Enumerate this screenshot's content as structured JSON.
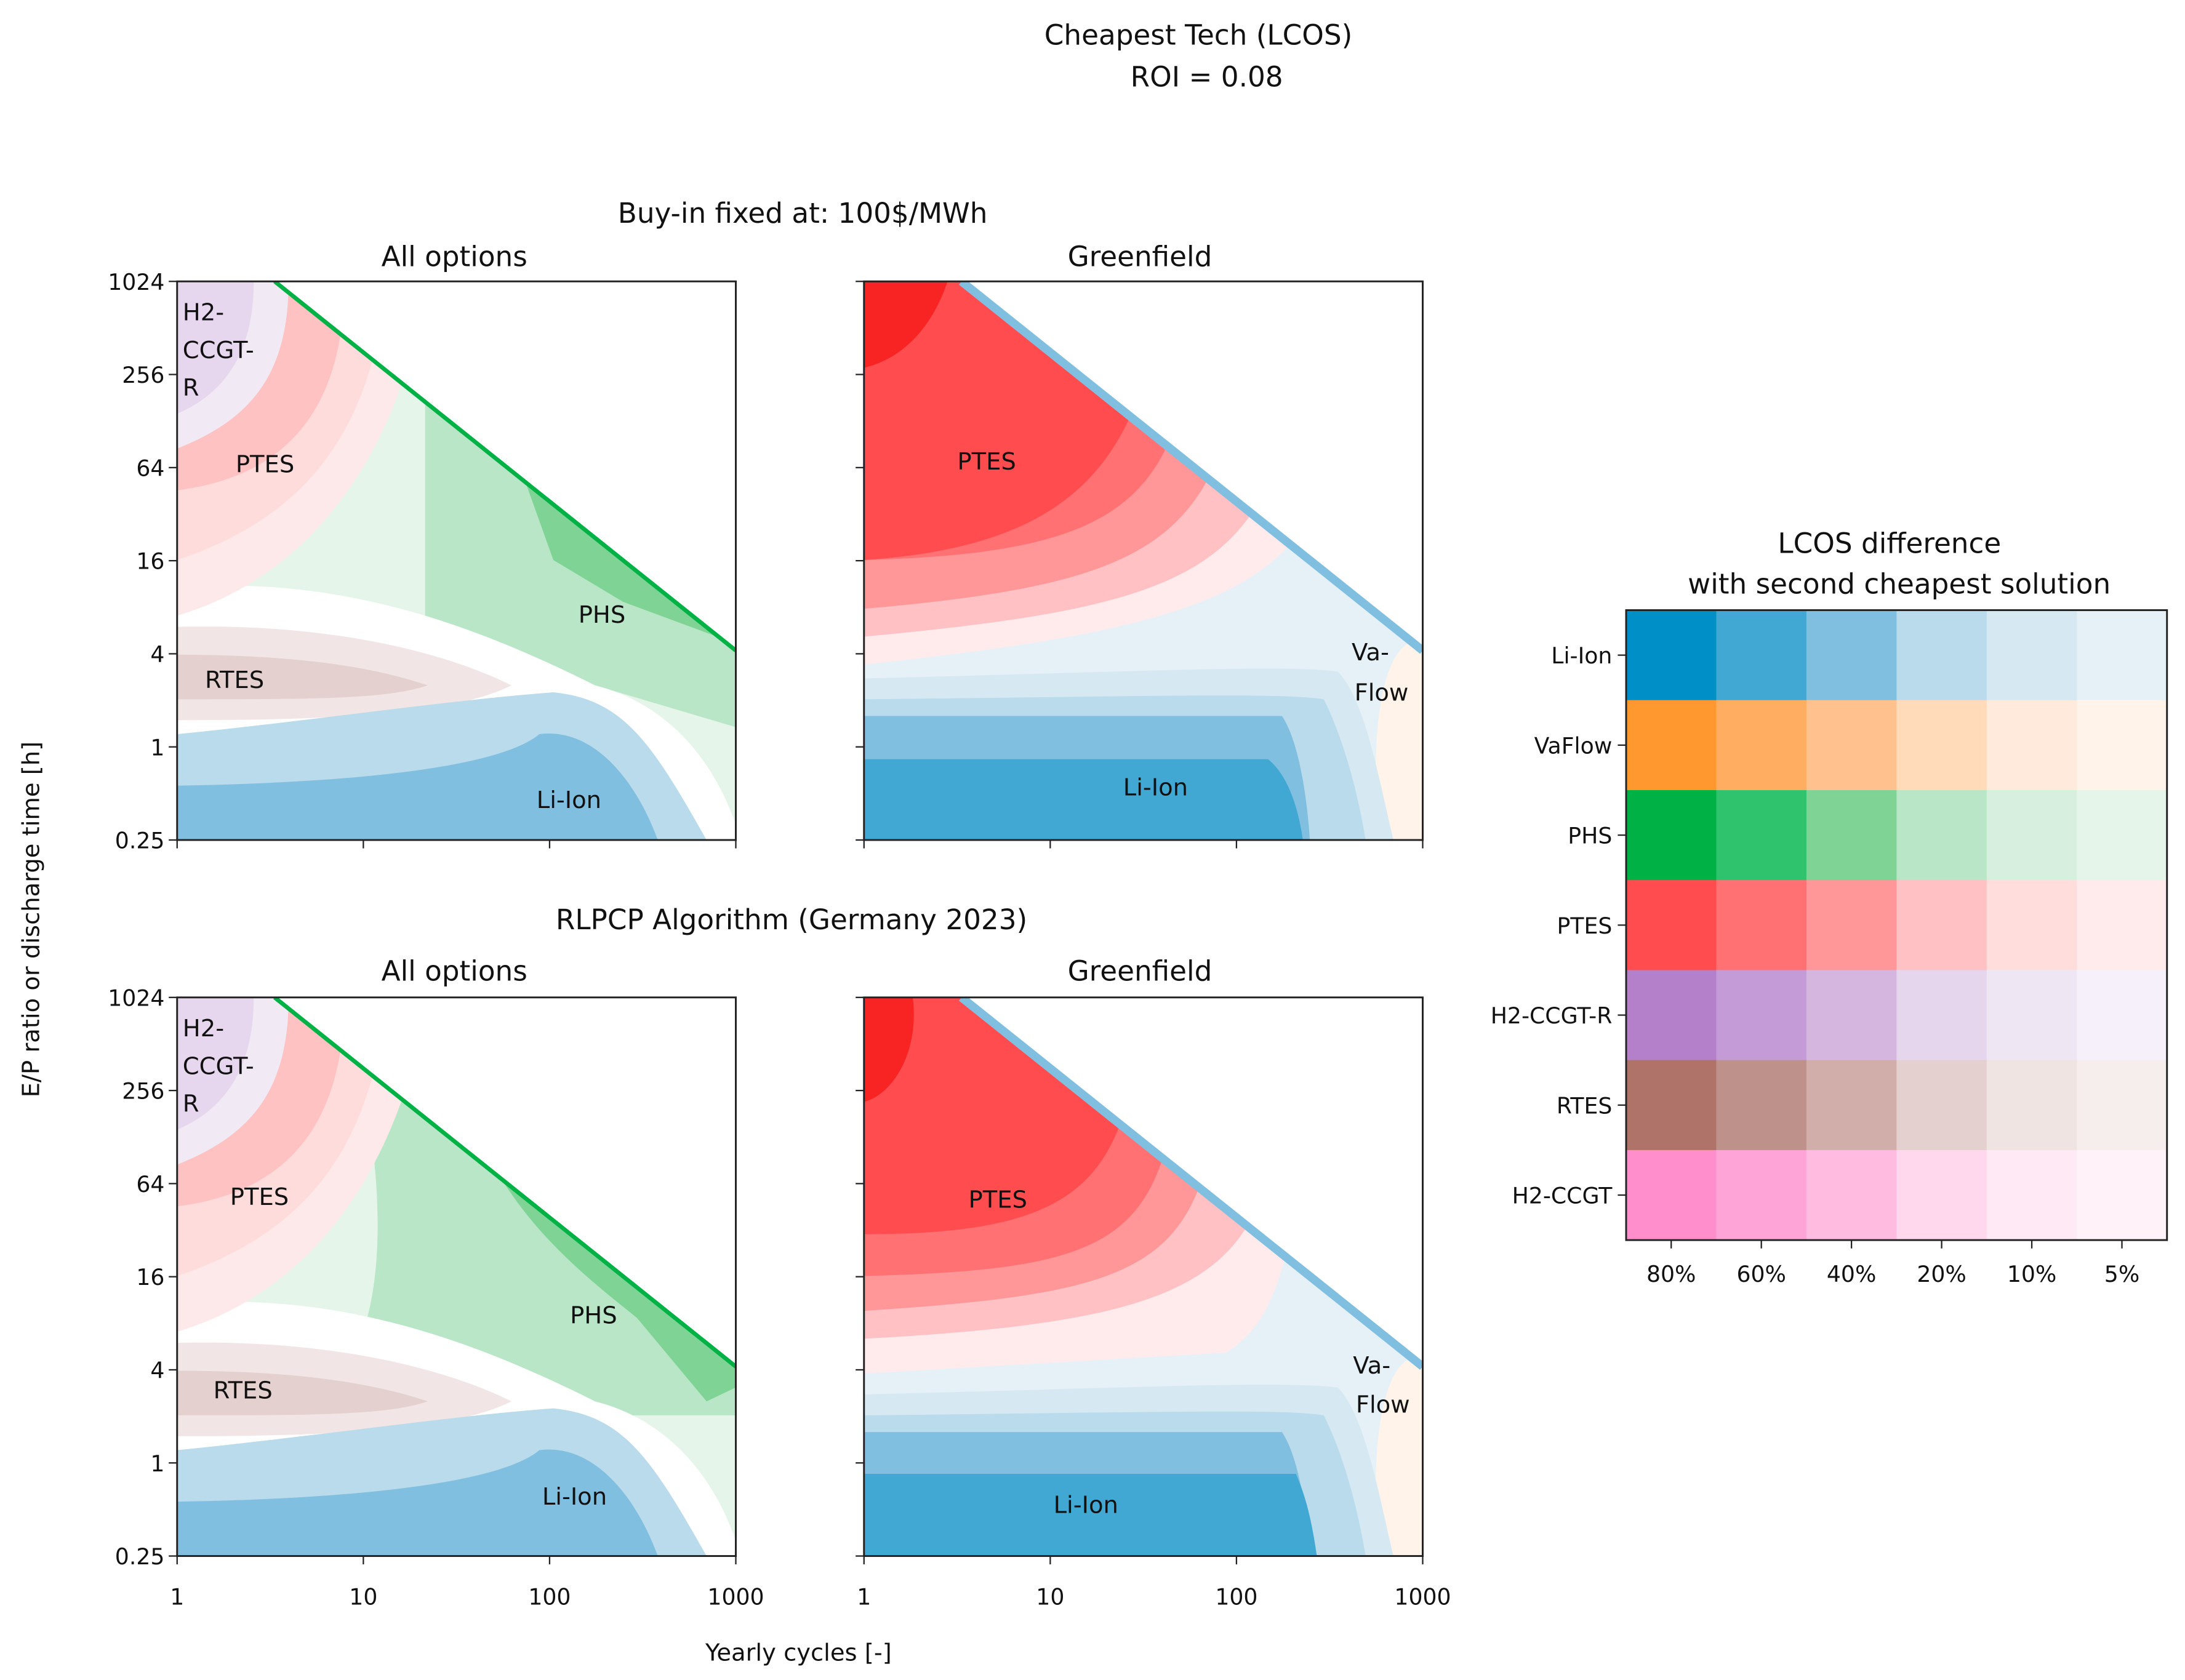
{
  "suptitle": [
    "Cheapest Tech (LCOS)",
    "ROI = 0.08"
  ],
  "row_titles": [
    "Buy-in fixed at: 100$/MWh",
    "RLPCP Algorithm (Germany 2023)"
  ],
  "panel_titles": [
    "All options",
    "Greenfield",
    "All options",
    "Greenfield"
  ],
  "ylabel": "E/P ratio or discharge time [h]",
  "xlabel": "Yearly cycles [-]",
  "region_labels": {
    "h2": [
      "H2-",
      "CCGT-",
      "R"
    ],
    "ptes": "PTES",
    "phs": "PHS",
    "rtes": "RTES",
    "liion": "Li-Ion",
    "vaflow": [
      "Va-",
      "Flow"
    ]
  },
  "chart_data": [
    {
      "type": "heatmap",
      "title": "All options",
      "row": "Buy-in fixed at: 100$/MWh",
      "xlabel": "Yearly cycles [-]",
      "ylabel": "E/P ratio or discharge time [h]",
      "xscale": "log",
      "yscale": "log2",
      "xlim": [
        1,
        1000
      ],
      "ylim": [
        0.25,
        1024
      ],
      "xticks": [
        "1",
        "10",
        "100",
        "1000"
      ],
      "yticks": [
        "0.25",
        "1",
        "4",
        "16",
        "64",
        "256",
        "1024"
      ],
      "regions": [
        "H2-CCGT-R",
        "PTES",
        "PHS",
        "RTES",
        "Li-Ion"
      ]
    },
    {
      "type": "heatmap",
      "title": "Greenfield",
      "row": "Buy-in fixed at: 100$/MWh",
      "xscale": "log",
      "yscale": "log2",
      "xlim": [
        1,
        1000
      ],
      "ylim": [
        0.25,
        1024
      ],
      "regions": [
        "PTES",
        "Va-Flow",
        "Li-Ion"
      ]
    },
    {
      "type": "heatmap",
      "title": "All options",
      "row": "RLPCP Algorithm (Germany 2023)",
      "xscale": "log",
      "yscale": "log2",
      "xlim": [
        1,
        1000
      ],
      "ylim": [
        0.25,
        1024
      ],
      "regions": [
        "H2-CCGT-R",
        "PTES",
        "PHS",
        "RTES",
        "Li-Ion"
      ]
    },
    {
      "type": "heatmap",
      "title": "Greenfield",
      "row": "RLPCP Algorithm (Germany 2023)",
      "xscale": "log",
      "yscale": "log2",
      "xlim": [
        1,
        1000
      ],
      "ylim": [
        0.25,
        1024
      ],
      "regions": [
        "PTES",
        "Va-Flow",
        "Li-Ion"
      ]
    },
    {
      "type": "heatmap",
      "title": "LCOS difference\nwith second cheapest solution",
      "title_lines": [
        "LCOS difference",
        "with second cheapest solution"
      ],
      "rows": [
        "Li-Ion",
        "VaFlow",
        "PHS",
        "PTES",
        "H2-CCGT-R",
        "RTES",
        "H2-CCGT"
      ],
      "columns": [
        "80%",
        "60%",
        "40%",
        "20%",
        "10%",
        "5%"
      ],
      "colors": [
        [
          "#008fc6",
          "#40a8d2",
          "#80bfdf",
          "#b9dbeb",
          "#d6e9f3",
          "#e6f1f7"
        ],
        [
          "#ff982e",
          "#ffad60",
          "#ffc28e",
          "#ffdbba",
          "#ffeadb",
          "#fff3ea"
        ],
        [
          "#00b245",
          "#30c36e",
          "#7fd495",
          "#b8e6c7",
          "#d7efde",
          "#e6f5ea"
        ],
        [
          "#ff4d4f",
          "#ff7173",
          "#ff9697",
          "#ffc1c3",
          "#ffdddd",
          "#ffebec"
        ],
        [
          "#b380c9",
          "#c49bd6",
          "#d4b6de",
          "#e5d6ed",
          "#efe6f4",
          "#f5f0f9"
        ],
        [
          "#b07369",
          "#bf918b",
          "#d1aeaa",
          "#e4d0ce",
          "#f0e4e2",
          "#f6eeec"
        ],
        [
          "#ff8ecc",
          "#ffa4d6",
          "#ffbbe0",
          "#ffd8ee",
          "#ffe9f5",
          "#fff3f9"
        ]
      ]
    }
  ]
}
